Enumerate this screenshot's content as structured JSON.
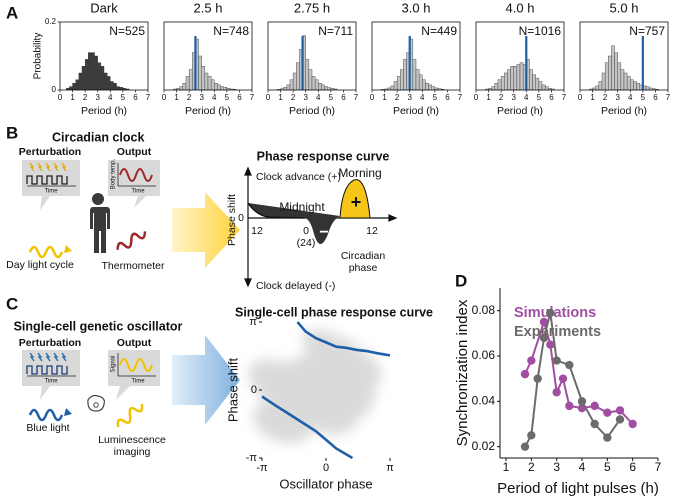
{
  "panel_labels": [
    "A",
    "B",
    "C",
    "D"
  ],
  "panel_b": {
    "title": "Circadian clock",
    "perturbation": "Perturbation",
    "perturbation_axis": "Time",
    "output": "Output",
    "output_axis_x": "Time",
    "output_axis_y": "Body temp.",
    "input_label": "Day light cycle",
    "output_label": "Thermometer",
    "prc": {
      "title": "Phase response curve",
      "advance": "Clock advance (+)",
      "delayed": "Clock delayed (-)",
      "ylabel": "Phase shift",
      "y_zero": "0",
      "midnight": "Midnight",
      "morning": "Morning",
      "plus": "+",
      "minus": "−",
      "left_tick": "12",
      "zero_tick": "0",
      "zero_tick_alt": "(24)",
      "right_tick": "12",
      "xlabel": [
        "Circadian",
        "phase"
      ]
    }
  },
  "panel_c": {
    "title": "Single-cell genetic oscillator",
    "perturbation": "Perturbation",
    "perturbation_axis": "Time",
    "output": "Output",
    "output_axis_x": "Time",
    "output_axis_y": "Signal",
    "input_label": "Blue light",
    "output_label": [
      "Luminescence",
      "imaging"
    ]
  },
  "chart_data": [
    {
      "type": "histogram",
      "title": "Dark",
      "annotation": "N=525",
      "color": "#3d3d3d",
      "xlabel": "Period (h)",
      "ylabel": "Probability",
      "bins": [
        0.5,
        0.75,
        1,
        1.25,
        1.5,
        1.75,
        2,
        2.25,
        2.5,
        2.75,
        3,
        3.25,
        3.5,
        3.75,
        4,
        4.25,
        4.5,
        4.75,
        5,
        5.25,
        5.5,
        5.75,
        6,
        6.25,
        6.5
      ],
      "values": [
        0.005,
        0.01,
        0.02,
        0.03,
        0.05,
        0.07,
        0.09,
        0.11,
        0.11,
        0.1,
        0.08,
        0.07,
        0.05,
        0.04,
        0.025,
        0.02,
        0.01,
        0.008,
        0.005,
        0.003,
        0,
        0,
        0,
        0
      ],
      "xlim": [
        0,
        7
      ],
      "xticks": [
        0,
        1,
        2,
        3,
        4,
        5,
        6,
        7
      ],
      "ylim": [
        0,
        0.2
      ],
      "yticks": [
        0,
        0.2
      ]
    },
    {
      "type": "histogram",
      "title": "2.5 h",
      "annotation": "N=748",
      "color": "#c4c4c4",
      "xlabel": "Period (h)",
      "pulse_period": 2.5,
      "pulse_color": "#1f5fa8",
      "bins": [
        0.5,
        0.75,
        1,
        1.25,
        1.5,
        1.75,
        2,
        2.25,
        2.5,
        2.75,
        3,
        3.25,
        3.5,
        3.75,
        4,
        4.25,
        4.5,
        4.75,
        5,
        5.25,
        5.5,
        5.75,
        6,
        6.25,
        6.5
      ],
      "values": [
        0,
        0.003,
        0.005,
        0.01,
        0.02,
        0.04,
        0.06,
        0.11,
        0.15,
        0.1,
        0.07,
        0.05,
        0.04,
        0.03,
        0.02,
        0.015,
        0.01,
        0.008,
        0.005,
        0.003,
        0.002,
        0,
        0,
        0
      ],
      "xlim": [
        0,
        7
      ],
      "xticks": [
        0,
        1,
        2,
        3,
        4,
        5,
        6,
        7
      ],
      "ylim": [
        0,
        0.2
      ]
    },
    {
      "type": "histogram",
      "title": "2.75 h",
      "annotation": "N=711",
      "color": "#c4c4c4",
      "xlabel": "Period (h)",
      "pulse_period": 2.75,
      "pulse_color": "#1f5fa8",
      "bins": [
        0.5,
        0.75,
        1,
        1.25,
        1.5,
        1.75,
        2,
        2.25,
        2.5,
        2.75,
        3,
        3.25,
        3.5,
        3.75,
        4,
        4.25,
        4.5,
        4.75,
        5,
        5.25,
        5.5,
        5.75,
        6,
        6.25,
        6.5
      ],
      "values": [
        0,
        0.002,
        0.004,
        0.008,
        0.015,
        0.03,
        0.05,
        0.08,
        0.12,
        0.16,
        0.09,
        0.06,
        0.04,
        0.03,
        0.02,
        0.015,
        0.01,
        0.007,
        0.005,
        0.003,
        0,
        0,
        0,
        0
      ],
      "xlim": [
        0,
        7
      ],
      "xticks": [
        0,
        1,
        2,
        3,
        4,
        5,
        6,
        7
      ],
      "ylim": [
        0,
        0.2
      ]
    },
    {
      "type": "histogram",
      "title": "3.0 h",
      "annotation": "N=449",
      "color": "#c4c4c4",
      "xlabel": "Period (h)",
      "pulse_period": 3.0,
      "pulse_color": "#1f5fa8",
      "bins": [
        0.5,
        0.75,
        1,
        1.25,
        1.5,
        1.75,
        2,
        2.25,
        2.5,
        2.75,
        3,
        3.25,
        3.5,
        3.75,
        4,
        4.25,
        4.5,
        4.75,
        5,
        5.25,
        5.5,
        5.75,
        6,
        6.25,
        6.5
      ],
      "values": [
        0,
        0.002,
        0.003,
        0.006,
        0.012,
        0.025,
        0.04,
        0.06,
        0.09,
        0.11,
        0.15,
        0.09,
        0.06,
        0.045,
        0.03,
        0.02,
        0.015,
        0.01,
        0.006,
        0.004,
        0.002,
        0,
        0,
        0
      ],
      "xlim": [
        0,
        7
      ],
      "xticks": [
        0,
        1,
        2,
        3,
        4,
        5,
        6,
        7
      ],
      "ylim": [
        0,
        0.2
      ]
    },
    {
      "type": "histogram",
      "title": "4.0 h",
      "annotation": "N=1016",
      "color": "#c4c4c4",
      "xlabel": "Period (h)",
      "pulse_period": 4.0,
      "pulse_color": "#1f5fa8",
      "bins": [
        0.5,
        0.75,
        1,
        1.25,
        1.5,
        1.75,
        2,
        2.25,
        2.5,
        2.75,
        3,
        3.25,
        3.5,
        3.75,
        4,
        4.25,
        4.5,
        4.75,
        5,
        5.25,
        5.5,
        5.75,
        6,
        6.25,
        6.5
      ],
      "values": [
        0,
        0.003,
        0.005,
        0.01,
        0.02,
        0.03,
        0.04,
        0.05,
        0.06,
        0.07,
        0.07,
        0.075,
        0.08,
        0.075,
        0.09,
        0.06,
        0.045,
        0.035,
        0.025,
        0.015,
        0.01,
        0.005,
        0.003,
        0
      ],
      "xlim": [
        0,
        7
      ],
      "xticks": [
        0,
        1,
        2,
        3,
        4,
        5,
        6,
        7
      ],
      "ylim": [
        0,
        0.2
      ]
    },
    {
      "type": "histogram",
      "title": "5.0 h",
      "annotation": "N=757",
      "color": "#c4c4c4",
      "xlabel": "Period (h)",
      "pulse_period": 5.0,
      "pulse_color": "#1f5fa8",
      "bins": [
        0.5,
        0.75,
        1,
        1.25,
        1.5,
        1.75,
        2,
        2.25,
        2.5,
        2.75,
        3,
        3.25,
        3.5,
        3.75,
        4,
        4.25,
        4.5,
        4.75,
        5,
        5.25,
        5.5,
        5.75,
        6,
        6.25,
        6.5
      ],
      "values": [
        0,
        0.003,
        0.006,
        0.012,
        0.025,
        0.05,
        0.08,
        0.1,
        0.13,
        0.11,
        0.08,
        0.06,
        0.05,
        0.04,
        0.03,
        0.025,
        0.02,
        0.015,
        0.012,
        0.01,
        0.006,
        0.004,
        0.002,
        0
      ],
      "xlim": [
        0,
        7
      ],
      "xticks": [
        0,
        1,
        2,
        3,
        4,
        5,
        6,
        7
      ],
      "ylim": [
        0,
        0.2
      ]
    },
    {
      "type": "line",
      "title": "Single-cell phase response curve",
      "xlabel": "Oscillator phase",
      "ylabel": "Phase shift",
      "background_cloud": true,
      "xlim": [
        -3.14159,
        3.14159
      ],
      "ylim": [
        -3.14159,
        3.14159
      ],
      "xticks": [
        {
          "value": -3.14159,
          "label": "-π"
        },
        0,
        {
          "value": 3.14159,
          "label": "π"
        }
      ],
      "yticks": [
        {
          "value": -3.14159,
          "label": "-π"
        },
        0,
        {
          "value": 3.14159,
          "label": "π"
        }
      ],
      "series": [
        {
          "color": "#1f5fa8",
          "x": [
            -3.14,
            -2.5,
            -2,
            -1.5,
            -1,
            -0.5,
            0,
            0.5,
            1.3
          ],
          "values": [
            -0.3,
            -0.7,
            -1.0,
            -1.3,
            -1.6,
            -1.9,
            -2.3,
            -2.7,
            -3.14
          ]
        },
        {
          "color": "#1f5fa8",
          "x": [
            -1.4,
            -1,
            -0.5,
            0,
            0.5,
            1,
            1.5,
            2,
            2.5,
            3.14
          ],
          "values": [
            3.14,
            2.7,
            2.4,
            2.2,
            2.0,
            1.95,
            1.85,
            1.8,
            1.7,
            1.6
          ]
        }
      ]
    },
    {
      "type": "line",
      "xlabel": "Period of light pulses (h)",
      "ylabel": "Synchronization index",
      "markers": true,
      "legend": "top-left",
      "xlim": [
        1,
        7
      ],
      "xticks": [
        1,
        2,
        3,
        4,
        5,
        6,
        7
      ],
      "ylim": [
        0.015,
        0.09
      ],
      "yticks": [
        0.02,
        0.04,
        0.06,
        0.08
      ],
      "series": [
        {
          "name": "Simulations",
          "color": "#a04fa0",
          "x": [
            1.75,
            2,
            2.5,
            2.75,
            3,
            3.25,
            3.5,
            4,
            4.5,
            5,
            5.5,
            6
          ],
          "values": [
            0.052,
            0.058,
            0.075,
            0.065,
            0.044,
            0.05,
            0.038,
            0.037,
            0.038,
            0.035,
            0.036,
            0.03
          ]
        },
        {
          "name": "Experiments",
          "color": "#6b6b6b",
          "x": [
            1.75,
            2,
            2.25,
            2.5,
            2.75,
            3,
            3.5,
            4,
            4.5,
            5,
            5.5
          ],
          "values": [
            0.02,
            0.025,
            0.05,
            0.068,
            0.079,
            0.058,
            0.056,
            0.04,
            0.03,
            0.024,
            0.032
          ]
        }
      ]
    }
  ]
}
